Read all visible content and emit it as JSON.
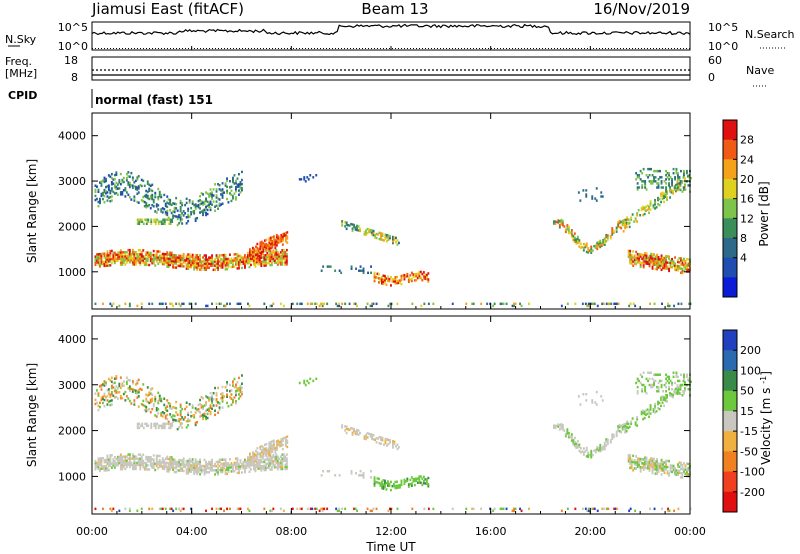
{
  "header": {
    "station": "Jiamusi East (fitACF)",
    "beam": "Beam 13",
    "date": "16/Nov/2019"
  },
  "noise_panel": {
    "left_label": "N.Sky",
    "right_label": "N.Search",
    "left_ticks": [
      "10^5",
      "10^0"
    ],
    "right_ticks": [
      "10^5",
      "10^0"
    ]
  },
  "freq_panel": {
    "left_label_1": "Freq.",
    "left_label_2": "[MHz]",
    "left_ticks": [
      "18",
      "8"
    ],
    "right_label": "Nave",
    "right_ticks": [
      "60",
      "0"
    ]
  },
  "cpid_panel": {
    "label": "CPID",
    "value": "normal (fast) 151"
  },
  "chart_data": [
    {
      "type": "heatmap",
      "parameter": "Power",
      "ylabel": "Slant Range [km]",
      "xlabel": "",
      "ylim": [
        180,
        4500
      ],
      "y_ticks": [
        "1000",
        "2000",
        "3000",
        "4000"
      ],
      "colorbar_label": "Power [dB]",
      "colorbar_ticks": [
        "4",
        "8",
        "12",
        "16",
        "20",
        "24",
        "28"
      ],
      "colorbar_colors": [
        "#0a1cd6",
        "#1f4db0",
        "#2d6a8a",
        "#3a8e5a",
        "#7fc44a",
        "#e0d020",
        "#f5a11a",
        "#f05a14",
        "#e01010"
      ]
    },
    {
      "type": "heatmap",
      "parameter": "Velocity",
      "ylabel": "Slant Range [km]",
      "xlabel": "Time UT",
      "ylim": [
        180,
        4500
      ],
      "y_ticks": [
        "1000",
        "2000",
        "3000",
        "4000"
      ],
      "x_ticks": [
        "00:00",
        "04:00",
        "08:00",
        "12:00",
        "16:00",
        "20:00",
        "00:00"
      ],
      "colorbar_label": "Velocity [m s^-1]",
      "colorbar_ticks": [
        "200",
        "100",
        "50",
        "15",
        "-15",
        "-50",
        "-100",
        "-200"
      ],
      "colorbar_colors": [
        "#2040c0",
        "#2a6ab0",
        "#3a8a4a",
        "#6cc83c",
        "#c8c8c0",
        "#f0b040",
        "#f08020",
        "#f04020",
        "#e01010"
      ]
    }
  ]
}
